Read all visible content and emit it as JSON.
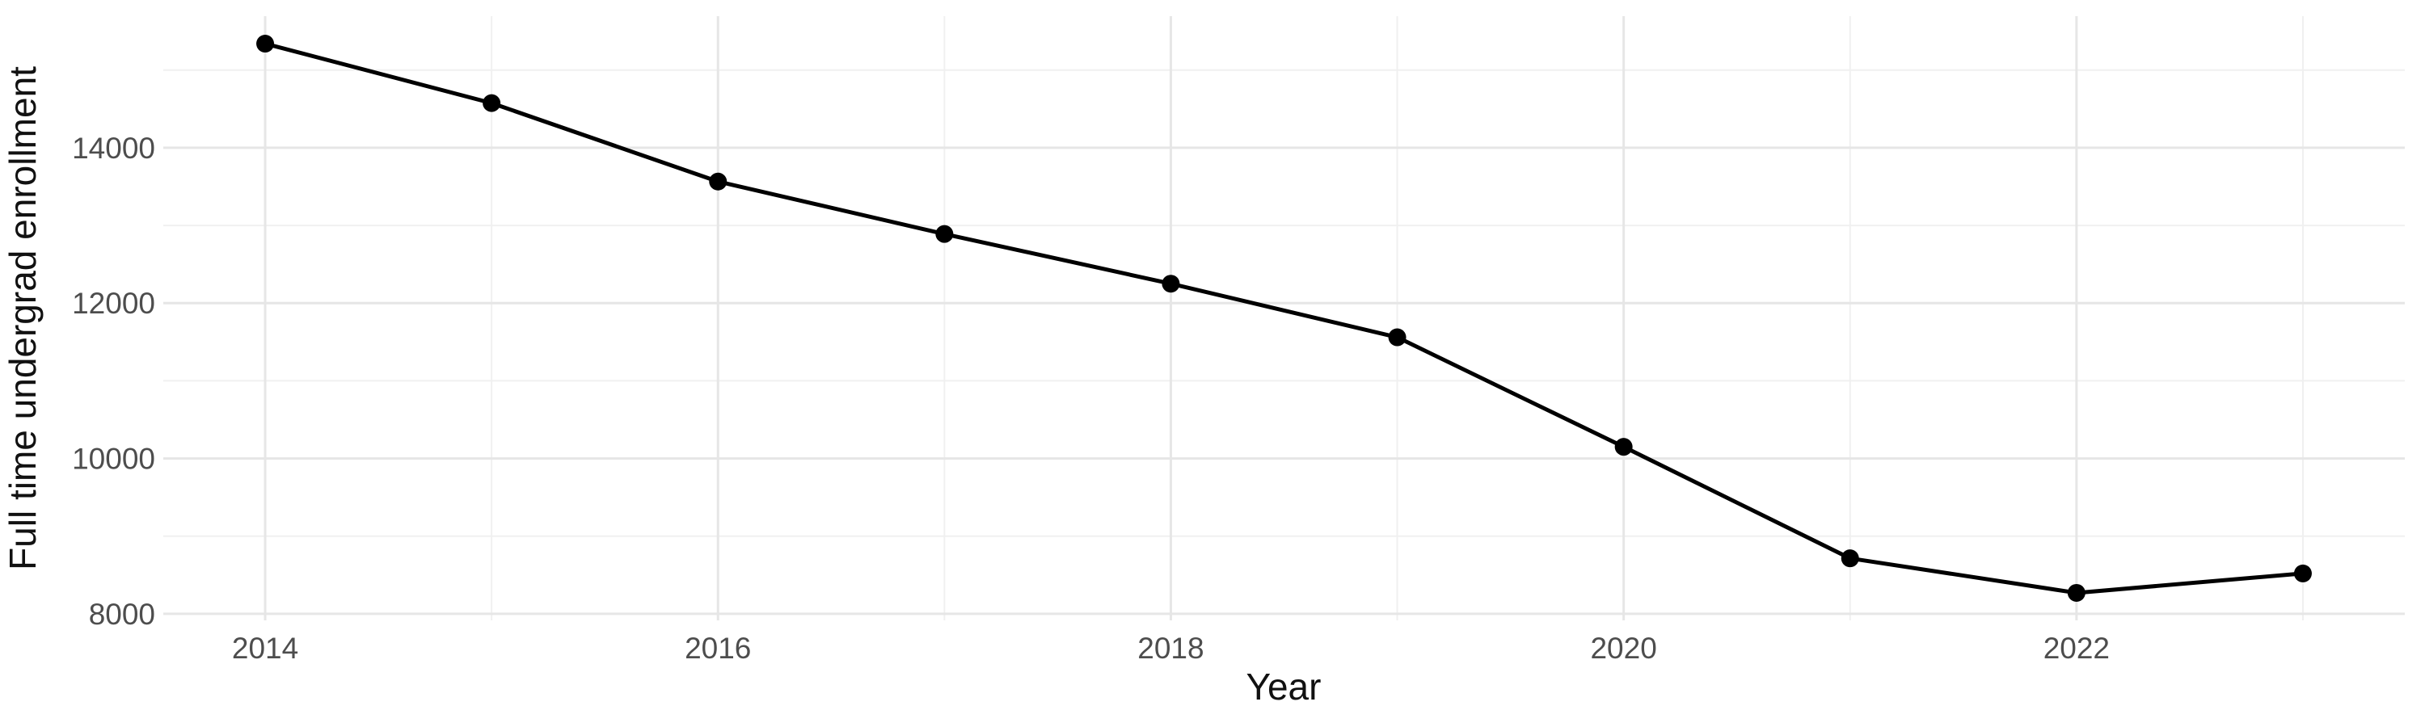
{
  "chart_data": {
    "type": "line",
    "title": "",
    "xlabel": "Year",
    "ylabel": "Full time undergrad enrollment",
    "series": [
      {
        "name": "Full time undergrad enrollment",
        "x": [
          2014,
          2015,
          2016,
          2017,
          2018,
          2019,
          2020,
          2021,
          2022,
          2023
        ],
        "values": [
          15340,
          14575,
          13565,
          12890,
          12250,
          11560,
          10150,
          8715,
          8270,
          8520
        ]
      }
    ],
    "x_major_ticks": [
      2014,
      2016,
      2018,
      2020,
      2022
    ],
    "x_minor_gridlines": [
      2015,
      2017,
      2019,
      2021,
      2023
    ],
    "y_major_ticks": [
      8000,
      10000,
      12000,
      14000
    ],
    "y_minor_gridlines": [
      9000,
      11000,
      13000,
      15000
    ],
    "xlim": [
      2013.55,
      2023.45
    ],
    "ylim": [
      7916,
      15694
    ],
    "grid": true,
    "legend": false,
    "marker": "point",
    "colors": {
      "background": "#ffffff",
      "panel_background": "#ffffff",
      "major_grid": "#e6e6e6",
      "minor_grid": "#f0f0f0",
      "line": "#000000",
      "point": "#000000",
      "tick_label": "#4d4d4d",
      "axis_title": "#111111"
    }
  }
}
